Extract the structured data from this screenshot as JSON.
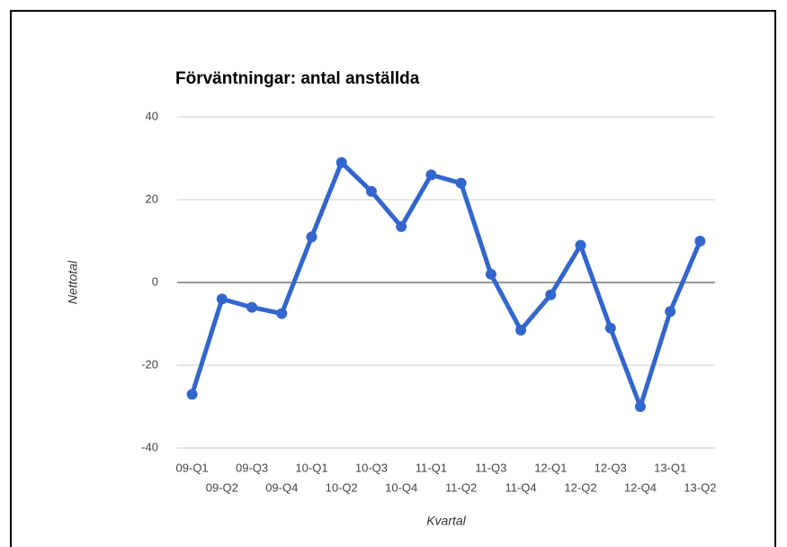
{
  "chart_data": {
    "type": "line",
    "title": "Förväntningar: antal anställda",
    "x_label": "Kvartal",
    "y_label": "Nettotal",
    "categories": [
      "09-Q1",
      "09-Q2",
      "09-Q3",
      "09-Q4",
      "10-Q1",
      "10-Q2",
      "10-Q3",
      "10-Q4",
      "11-Q1",
      "11-Q2",
      "11-Q3",
      "11-Q4",
      "12-Q1",
      "12-Q2",
      "12-Q3",
      "12-Q4",
      "13-Q1",
      "13-Q2"
    ],
    "values": [
      -27,
      -4,
      -6,
      -7.5,
      11,
      29,
      22,
      13.5,
      26,
      24,
      2,
      -11.5,
      -3,
      9,
      -11,
      -30,
      -7,
      10
    ],
    "color": "#3366cc",
    "ylim": [
      -40,
      40
    ],
    "yticks": [
      -40,
      -20,
      0,
      20,
      40
    ],
    "grid": true
  }
}
